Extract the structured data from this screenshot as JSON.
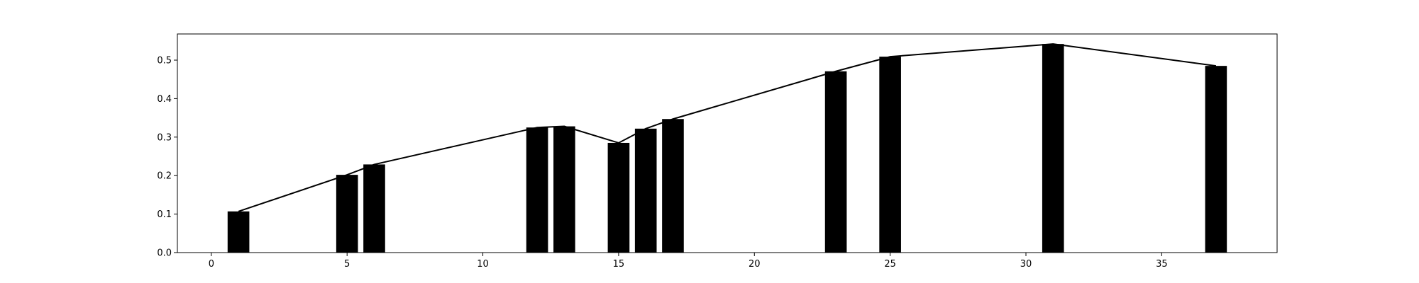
{
  "chart_data": {
    "type": "bar",
    "title": "",
    "xlabel": "",
    "ylabel": "",
    "xlim": [
      -1.25,
      39.25
    ],
    "ylim": [
      0,
      0.568
    ],
    "grid": false,
    "colors": {
      "bar": "#000000",
      "line": "#000000",
      "axes": "#000000",
      "background": "#ffffff"
    },
    "x_ticks": [
      0,
      5,
      10,
      15,
      20,
      25,
      30,
      35
    ],
    "x_tick_labels": [
      "0",
      "5",
      "10",
      "15",
      "20",
      "25",
      "30",
      "35"
    ],
    "y_ticks": [
      0.0,
      0.1,
      0.2,
      0.3,
      0.4,
      0.5
    ],
    "y_tick_labels": [
      "0.0",
      "0.1",
      "0.2",
      "0.3",
      "0.4",
      "0.5"
    ],
    "bar_width": 0.8,
    "x": [
      1,
      5,
      6,
      12,
      13,
      15,
      16,
      17,
      23,
      25,
      31,
      37
    ],
    "values": [
      0.107,
      0.202,
      0.229,
      0.325,
      0.328,
      0.285,
      0.322,
      0.347,
      0.471,
      0.509,
      0.542,
      0.485
    ],
    "overlay_line": {
      "type": "line",
      "x": [
        1,
        5,
        6,
        12,
        13,
        15,
        16,
        17,
        23,
        25,
        31,
        37
      ],
      "values": [
        0.107,
        0.202,
        0.229,
        0.325,
        0.328,
        0.285,
        0.322,
        0.347,
        0.471,
        0.509,
        0.542,
        0.485
      ]
    }
  }
}
